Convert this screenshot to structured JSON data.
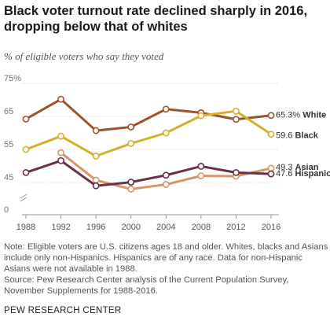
{
  "title": "Black voter turnout rate declined sharply in 2016, dropping below that of whites",
  "subtitle": "% of eligible voters who say they voted",
  "chart_data": {
    "type": "line",
    "x": [
      1988,
      1992,
      1996,
      2000,
      2004,
      2008,
      2012,
      2016
    ],
    "ylim": [
      0,
      75
    ],
    "y_ticks": [
      0,
      45,
      55,
      65,
      75
    ],
    "y_tick_labels": [
      "0",
      "45",
      "55",
      "65",
      "75%"
    ],
    "grid": "horizontal",
    "series": [
      {
        "name": "White",
        "color": "#a0522d",
        "values": [
          64.2,
          70.2,
          60.7,
          61.8,
          67.2,
          66.1,
          64.1,
          65.3
        ],
        "end_label": "65.3%"
      },
      {
        "name": "Black",
        "color": "#d4b12b",
        "values": [
          55.0,
          59.0,
          53.0,
          56.8,
          60.0,
          65.2,
          66.6,
          59.6
        ],
        "end_label": "59.6"
      },
      {
        "name": "Asian",
        "color": "#d9956a",
        "values": [
          null,
          54.0,
          45.7,
          43.0,
          44.4,
          47.0,
          46.9,
          49.3
        ],
        "end_label": "49.3"
      },
      {
        "name": "Hispanic",
        "color": "#6b2f4a",
        "values": [
          48.0,
          51.6,
          44.0,
          45.1,
          47.2,
          49.9,
          48.0,
          47.6
        ],
        "end_label": "47.6"
      }
    ]
  },
  "note": {
    "lines": [
      "Note: Eligible voters are U.S. citizens ages 18 and older. Whites, blacks and Asians",
      "include only non-Hispanics. Hispanics are of any race. Data for non-Hispanic",
      "Asians were not available in 1988.",
      "Source: Pew Research Center analysis of the Current Population Survey,",
      "November Supplements for 1988-2016."
    ]
  },
  "brand": "PEW RESEARCH CENTER"
}
